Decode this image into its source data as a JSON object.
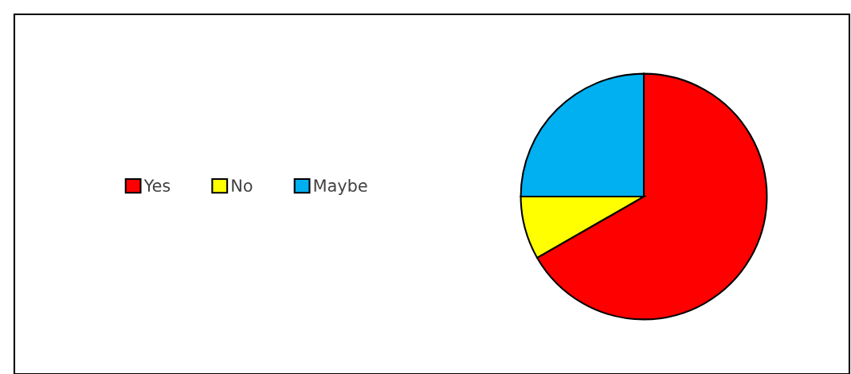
{
  "chart_data": {
    "type": "pie",
    "categories": [
      "Yes",
      "No",
      "Maybe"
    ],
    "values": [
      66.7,
      8.3,
      25
    ],
    "colors": [
      "#ff0000",
      "#ffff00",
      "#00b0f0"
    ],
    "legend": "left"
  }
}
